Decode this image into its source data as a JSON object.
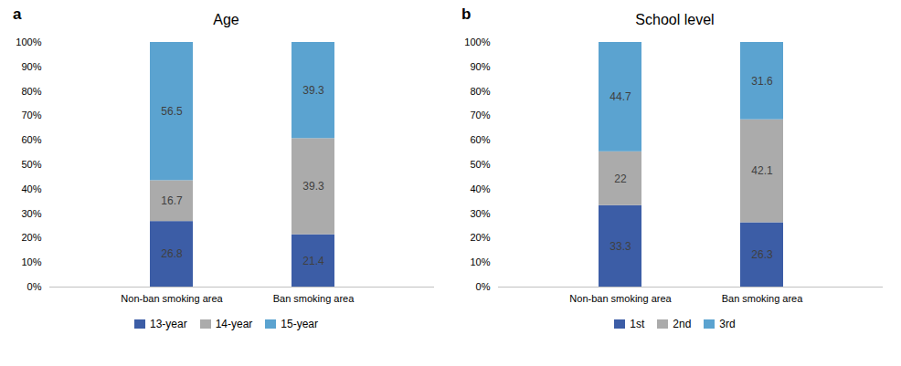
{
  "chart_data": [
    {
      "type": "bar",
      "title": "Age",
      "annotations": [
        "a"
      ],
      "categories": [
        "Non-ban smoking area",
        "Ban smoking area"
      ],
      "series": [
        {
          "name": "13-year",
          "color": "#3C5DA6",
          "values": [
            26.8,
            21.4
          ]
        },
        {
          "name": "14-year",
          "color": "#ABABAB",
          "values": [
            16.7,
            39.3
          ]
        },
        {
          "name": "15-year",
          "color": "#5BA3D0",
          "values": [
            56.5,
            39.3
          ]
        }
      ],
      "stacked": true,
      "data_labels": true,
      "legend": "bottom",
      "grid": false,
      "ylim": [
        0,
        100
      ],
      "yticks": [
        {
          "value": 0,
          "label": "0%"
        },
        {
          "value": 10,
          "label": "10%"
        },
        {
          "value": 20,
          "label": "20%"
        },
        {
          "value": 30,
          "label": "30%"
        },
        {
          "value": 40,
          "label": "40%"
        },
        {
          "value": 50,
          "label": "50%"
        },
        {
          "value": 60,
          "label": "60%"
        },
        {
          "value": 70,
          "label": "70%"
        },
        {
          "value": 80,
          "label": "80%"
        },
        {
          "value": 90,
          "label": "90%"
        },
        {
          "value": 100,
          "label": "100%"
        }
      ]
    },
    {
      "type": "bar",
      "title": "School level",
      "annotations": [
        "b"
      ],
      "categories": [
        "Non-ban smoking area",
        "Ban smoking area"
      ],
      "series": [
        {
          "name": "1st",
          "color": "#3C5DA6",
          "values": [
            33.3,
            26.3
          ]
        },
        {
          "name": "2nd",
          "color": "#ABABAB",
          "values": [
            22.0,
            42.1
          ]
        },
        {
          "name": "3rd",
          "color": "#5BA3D0",
          "values": [
            44.7,
            31.6
          ]
        }
      ],
      "stacked": true,
      "data_labels": true,
      "legend": "bottom",
      "grid": false,
      "ylim": [
        0,
        100
      ],
      "yticks": [
        {
          "value": 0,
          "label": "0%"
        },
        {
          "value": 10,
          "label": "10%"
        },
        {
          "value": 20,
          "label": "20%"
        },
        {
          "value": 30,
          "label": "30%"
        },
        {
          "value": 40,
          "label": "40%"
        },
        {
          "value": 50,
          "label": "50%"
        },
        {
          "value": 60,
          "label": "60%"
        },
        {
          "value": 70,
          "label": "70%"
        },
        {
          "value": 80,
          "label": "80%"
        },
        {
          "value": 90,
          "label": "90%"
        },
        {
          "value": 100,
          "label": "100%"
        }
      ]
    }
  ]
}
